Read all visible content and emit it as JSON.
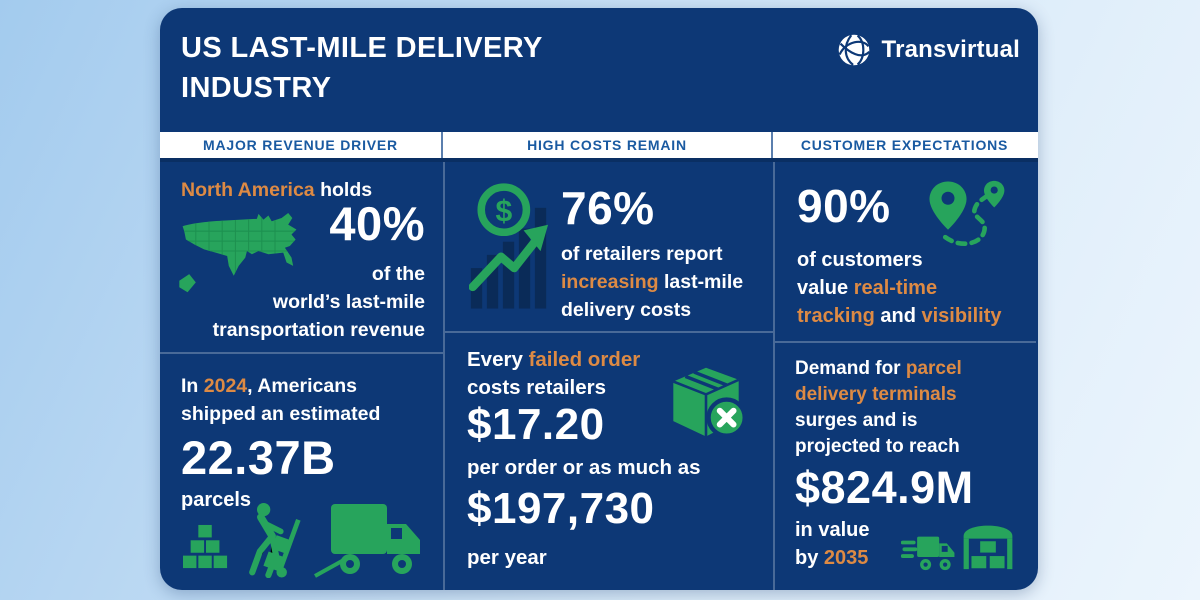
{
  "header": {
    "title_line1": "US LAST-MILE DELIVERY",
    "title_line2": "INDUSTRY",
    "brand": "Transvirtual"
  },
  "colors": {
    "card_navy": "#0d3876",
    "accent_orange": "#dd8a44",
    "accent_green": "#27a45c",
    "header_text_blue": "#1a5aa1",
    "dark_bars_navy": "#0a2b58",
    "background_light_blue": "#cde3f6"
  },
  "icons": {
    "brand_logo": "globe-network-icon",
    "col1": [
      "us-map-icon",
      "parcel-boxes-icon",
      "delivery-worker-icon",
      "delivery-truck-icon"
    ],
    "col2": [
      "cost-growth-icon",
      "failed-parcel-icon"
    ],
    "col3": [
      "route-pins-icon",
      "fast-truck-icon",
      "parcel-terminal-icon"
    ],
    "dollar_symbol": "$"
  },
  "columns": [
    {
      "header": "MAJOR REVENUE DRIVER",
      "top": {
        "heading": [
          {
            "t": "North America",
            "c": "orange"
          },
          {
            "t": " holds",
            "c": "white"
          }
        ],
        "stat": "40%",
        "lines": [
          [
            {
              "t": "of the",
              "c": "white"
            }
          ],
          [
            {
              "t": "world’s last-mile",
              "c": "white"
            }
          ],
          [
            {
              "t": "transportation revenue",
              "c": "white"
            }
          ]
        ]
      },
      "bottom": {
        "lines": [
          [
            {
              "t": "In ",
              "c": "white"
            },
            {
              "t": "2024",
              "c": "orange"
            },
            {
              "t": ", Americans",
              "c": "white"
            }
          ],
          [
            {
              "t": "shipped an estimated",
              "c": "white"
            }
          ]
        ],
        "stat": "22.37B",
        "caption": "parcels"
      }
    },
    {
      "header": "HIGH COSTS REMAIN",
      "top": {
        "stat": "76%",
        "lines": [
          [
            {
              "t": "of retailers report",
              "c": "white"
            }
          ],
          [
            {
              "t": "increasing",
              "c": "orange"
            },
            {
              "t": " last-mile",
              "c": "white"
            }
          ],
          [
            {
              "t": "delivery costs",
              "c": "white"
            }
          ]
        ]
      },
      "bottom": {
        "lines": [
          [
            {
              "t": "Every ",
              "c": "white"
            },
            {
              "t": "failed order",
              "c": "orange"
            }
          ],
          [
            {
              "t": "costs retailers",
              "c": "white"
            }
          ]
        ],
        "stat1": "$17.20",
        "mid_caption": "per order or as much as",
        "stat2": "$197,730",
        "caption": "per year"
      }
    },
    {
      "header": "CUSTOMER EXPECTATIONS",
      "top": {
        "stat": "90%",
        "lines": [
          [
            {
              "t": "of customers",
              "c": "white"
            }
          ],
          [
            {
              "t": "value ",
              "c": "white"
            },
            {
              "t": "real-time",
              "c": "orange"
            }
          ],
          [
            {
              "t": "tracking",
              "c": "orange"
            },
            {
              "t": " and ",
              "c": "white"
            },
            {
              "t": "visibility",
              "c": "orange"
            }
          ]
        ]
      },
      "bottom": {
        "lines": [
          [
            {
              "t": "Demand for ",
              "c": "white"
            },
            {
              "t": "parcel",
              "c": "orange"
            }
          ],
          [
            {
              "t": "delivery terminals",
              "c": "orange"
            }
          ],
          [
            {
              "t": "surges and is",
              "c": "white"
            }
          ],
          [
            {
              "t": "projected to reach",
              "c": "white"
            }
          ]
        ],
        "stat": "$824.9M",
        "lines2": [
          [
            {
              "t": "in value",
              "c": "white"
            }
          ],
          [
            {
              "t": "by ",
              "c": "white"
            },
            {
              "t": "2035",
              "c": "orange"
            }
          ]
        ]
      }
    }
  ]
}
